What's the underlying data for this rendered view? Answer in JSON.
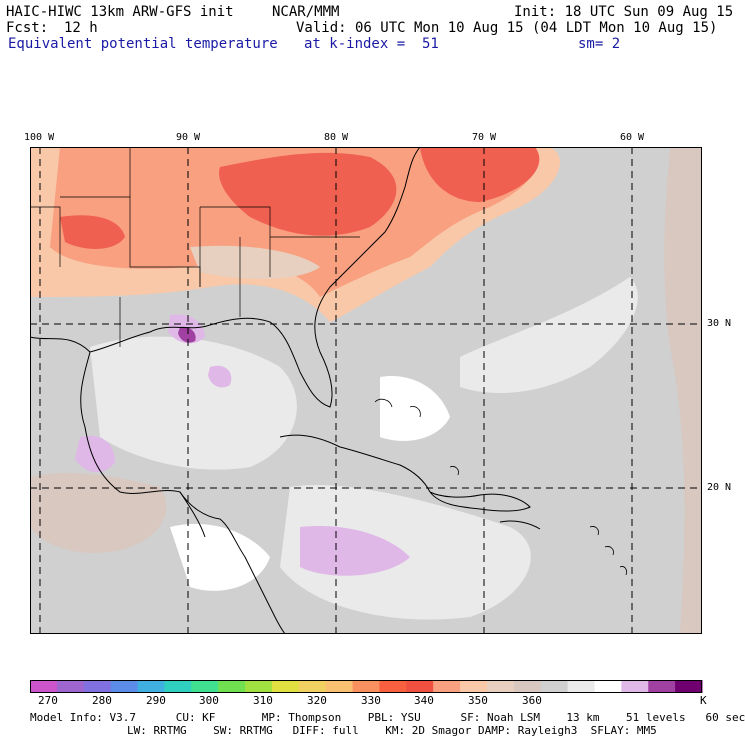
{
  "header": {
    "model": "HAIC-HIWC 13km ARW-GFS init",
    "org": "NCAR/MMM",
    "init": "Init: 18 UTC Sun 09 Aug 15",
    "fcst_label": "Fcst:",
    "fcst_value": "12 h",
    "valid": "Valid: 06 UTC Mon 10 Aug 15 (04 LDT Mon 10 Aug 15)",
    "field": "Equivalent potential temperature",
    "level": "at k-index =  51",
    "smooth": "sm= 2"
  },
  "map": {
    "lon_labels": [
      "100 W",
      "90 W",
      "80 W",
      "70 W",
      "60 W"
    ],
    "lat_labels": [
      "30 N",
      "20 N"
    ],
    "colors": {
      "background": "#d0d0d0",
      "land": "#c8c8c8",
      "coast": "#000000",
      "grid": "#000000"
    }
  },
  "colorbar": {
    "unit": "K",
    "ticks": [
      "270",
      "280",
      "290",
      "300",
      "310",
      "320",
      "330",
      "340",
      "350",
      "360"
    ],
    "colors": [
      "#cc55cc",
      "#a066d0",
      "#8070e0",
      "#5a8ce8",
      "#40b0e0",
      "#30d0c0",
      "#40e090",
      "#70e050",
      "#a0e040",
      "#e0e040",
      "#f0d060",
      "#f8c070",
      "#f89060",
      "#f86040",
      "#f05040",
      "#f8a080",
      "#f8c8a8",
      "#e8d0c0",
      "#d8c8c0",
      "#d0d0d0",
      "#eaeaea",
      "#ffffff",
      "#e0b8e8",
      "#a040a0",
      "#700070"
    ]
  },
  "footer": {
    "line1": "Model Info: V3.7      CU: KF       MP: Thompson    PBL: YSU      SF: Noah LSM    13 km    51 levels   60 sec",
    "line2": "LW: RRTMG    SW: RRTMG   DIFF: full    KM: 2D Smagor DAMP: Rayleigh3  SFLAY: MM5"
  }
}
